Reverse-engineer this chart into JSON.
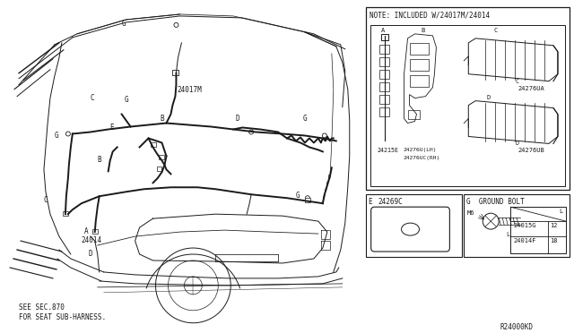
{
  "bg_color": "#ffffff",
  "line_color": "#1a1a1a",
  "note_text": "NOTE: INCLUDED W/24017M/24014",
  "ref_code": "R24000KD",
  "see_sec": "SEE SEC.870",
  "for_seat": "FOR SEAT SUB-HARNESS.",
  "G_GROUND_BOLT": "G  GROUND BOLT",
  "M6": "M6",
  "colors": {
    "background": "#ffffff",
    "lines": "#1a1a1a",
    "text": "#1a1a1a"
  }
}
